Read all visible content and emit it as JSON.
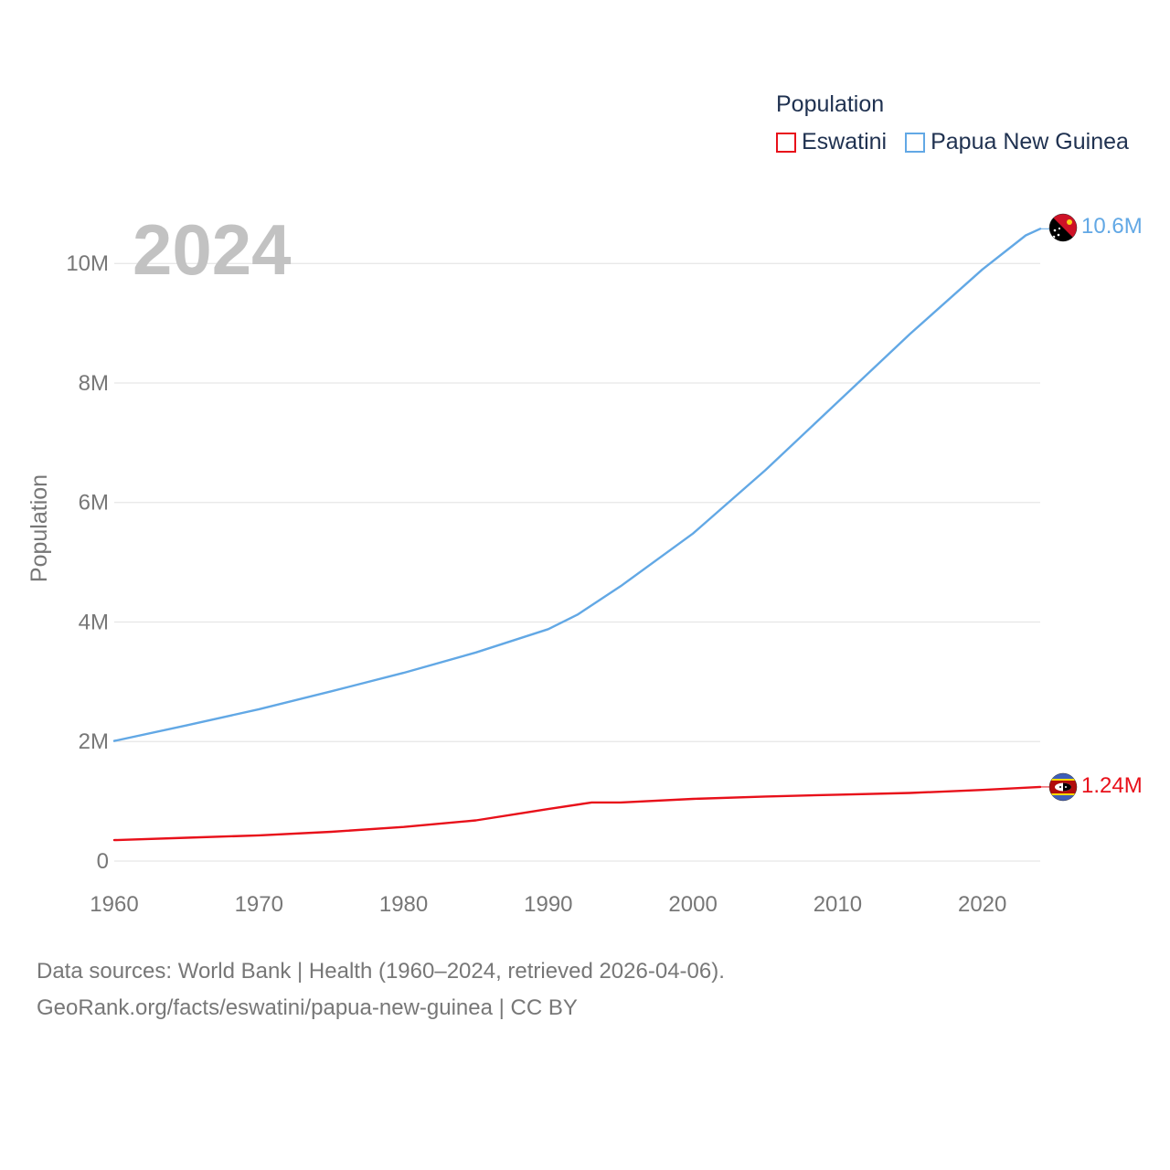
{
  "legend": {
    "title": "Population",
    "items": [
      {
        "label": "Eswatini",
        "color": "#e8101a"
      },
      {
        "label": "Papua New Guinea",
        "color": "#62a8e5"
      }
    ]
  },
  "source": {
    "line1": "Data sources: World Bank | Health (1960–2024, retrieved 2026-04-06).",
    "line2": "GeoRank.org/facts/eswatini/papua-new-guinea | CC BY"
  },
  "chart_data": {
    "type": "line",
    "title": "2024",
    "xlabel": "",
    "ylabel": "Population",
    "xlim": [
      1960,
      2024
    ],
    "ylim": [
      0,
      10600000
    ],
    "xticks": [
      1960,
      1970,
      1980,
      1990,
      2000,
      2010,
      2020
    ],
    "yticks": [
      {
        "value": 0,
        "label": "0"
      },
      {
        "value": 2000000,
        "label": "2M"
      },
      {
        "value": 4000000,
        "label": "4M"
      },
      {
        "value": 6000000,
        "label": "6M"
      },
      {
        "value": 8000000,
        "label": "8M"
      },
      {
        "value": 10000000,
        "label": "10M"
      }
    ],
    "grid": true,
    "series": [
      {
        "name": "Papua New Guinea",
        "color": "#62a8e5",
        "end_label": "10.6M",
        "flag": "papua-new-guinea-flag-icon",
        "x": [
          1960,
          1965,
          1970,
          1975,
          1980,
          1985,
          1990,
          1992,
          1995,
          2000,
          2005,
          2010,
          2015,
          2020,
          2023,
          2024
        ],
        "values": [
          2010000,
          2270000,
          2540000,
          2840000,
          3150000,
          3490000,
          3880000,
          4120000,
          4600000,
          5480000,
          6540000,
          7680000,
          8820000,
          9900000,
          10470000,
          10580000
        ]
      },
      {
        "name": "Eswatini",
        "color": "#e8101a",
        "end_label": "1.24M",
        "flag": "eswatini-flag-icon",
        "x": [
          1960,
          1965,
          1970,
          1975,
          1980,
          1985,
          1990,
          1993,
          1995,
          2000,
          2005,
          2010,
          2015,
          2020,
          2024
        ],
        "values": [
          350000,
          390000,
          430000,
          490000,
          570000,
          680000,
          870000,
          980000,
          980000,
          1040000,
          1080000,
          1110000,
          1140000,
          1190000,
          1240000
        ]
      }
    ]
  }
}
